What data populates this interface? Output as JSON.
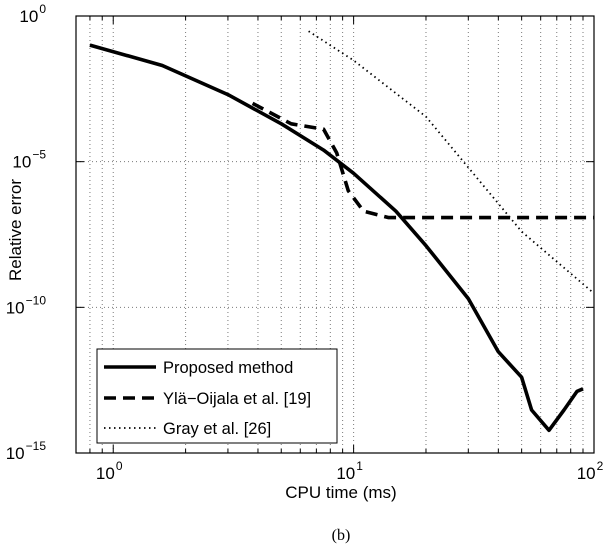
{
  "chart_data": {
    "type": "line",
    "xlabel": "CPU time (ms)",
    "ylabel": "Relative error",
    "caption": "(b)",
    "x_scale": "log",
    "y_scale": "log",
    "xlim": [
      0.7,
      100
    ],
    "ylim": [
      1e-15,
      1
    ],
    "x_ticks": [
      {
        "value": 1,
        "base": "10",
        "exp": "0"
      },
      {
        "value": 10,
        "base": "10",
        "exp": "1"
      },
      {
        "value": 100,
        "base": "10",
        "exp": "2"
      }
    ],
    "y_ticks": [
      {
        "value": 1,
        "base": "10",
        "exp": "0"
      },
      {
        "value": 1e-05,
        "base": "10",
        "exp": "−5"
      },
      {
        "value": 1e-10,
        "base": "10",
        "exp": "−10"
      },
      {
        "value": 1e-15,
        "base": "10",
        "exp": "−15"
      }
    ],
    "grid": true,
    "legend_position": "bottom-left",
    "series": [
      {
        "name": "Proposed method",
        "style": "solid",
        "color": "#000000",
        "x": [
          0.8,
          1.6,
          3.0,
          5.0,
          7.5,
          10,
          15,
          20,
          30,
          40,
          50,
          55,
          65,
          75,
          85,
          90
        ],
        "y": [
          0.1,
          0.02,
          0.002,
          0.0002,
          2.5e-05,
          4e-06,
          2e-07,
          1.3e-08,
          2e-10,
          3e-12,
          4e-13,
          3e-14,
          6e-15,
          3e-14,
          1.3e-13,
          1.6e-13
        ]
      },
      {
        "name": "Ylä−Oijala et al. [19]",
        "style": "dashed",
        "color": "#000000",
        "x": [
          3.8,
          5.5,
          7.5,
          8.5,
          9.5,
          11,
          14,
          20,
          40,
          100
        ],
        "y": [
          0.001,
          0.0002,
          0.00013,
          2e-05,
          1e-06,
          2e-07,
          1.2e-07,
          1.2e-07,
          1.2e-07,
          1.2e-07
        ]
      },
      {
        "name": "Gray et al. [26]",
        "style": "dotted",
        "color": "#000000",
        "x": [
          6.5,
          10,
          20,
          50,
          100
        ],
        "y": [
          0.3,
          0.03,
          0.00035,
          4e-08,
          3e-10
        ]
      }
    ]
  }
}
